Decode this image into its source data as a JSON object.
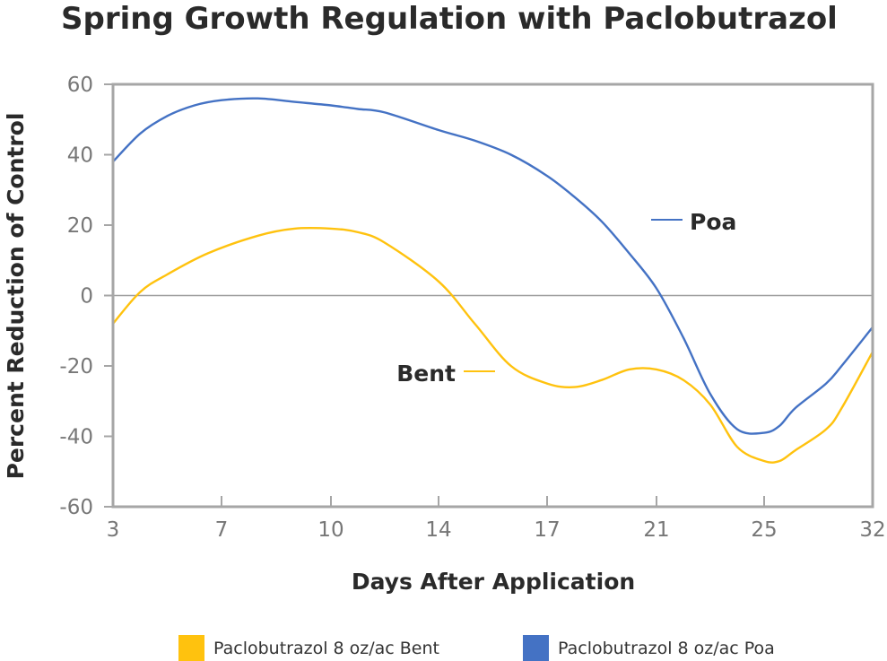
{
  "chart_data": {
    "type": "line",
    "title": "Spring Growth Regulation with Paclobutrazol",
    "xlabel": "Days After Application",
    "ylabel": "Percent Reduction of Control",
    "x_ticks": [
      3,
      7,
      10,
      14,
      17,
      21,
      25,
      32
    ],
    "y_ticks": [
      60,
      40,
      20,
      0,
      -20,
      -40,
      -60
    ],
    "xlim": [
      3,
      32
    ],
    "ylim": [
      -60,
      60
    ],
    "grid": false,
    "zero_line": true,
    "legend_position": "bottom",
    "series": [
      {
        "name": "Paclobutrazol 8 oz/ac Bent",
        "short_label": "Bent",
        "color": "#FFC20E",
        "x": [
          3,
          4,
          5,
          6.5,
          8,
          9,
          10,
          11,
          12,
          14,
          15,
          16,
          17,
          18,
          19,
          20,
          21,
          22,
          23,
          24,
          25,
          26,
          27,
          29,
          30,
          32
        ],
        "y": [
          -8,
          1,
          6,
          12,
          17,
          19,
          19,
          18,
          15,
          4,
          -8,
          -20,
          -25,
          -26,
          -24,
          -21,
          -21,
          -24,
          -31,
          -43,
          -47,
          -47,
          -44,
          -38,
          -32,
          -16
        ]
      },
      {
        "name": "Paclobutrazol 8 oz/ac Poa",
        "short_label": "Poa",
        "color": "#4472C4",
        "x": [
          3,
          4,
          5,
          6,
          7,
          8,
          9,
          10,
          11,
          12,
          14,
          15,
          16,
          17,
          18,
          19,
          20,
          21,
          22,
          23,
          24,
          25,
          26,
          27,
          29,
          30,
          32
        ],
        "y": [
          38,
          46,
          51,
          54,
          55.5,
          56,
          55,
          54,
          53,
          52,
          47,
          44,
          40,
          34,
          28,
          21,
          12,
          2,
          -12,
          -28,
          -38,
          -39,
          -37,
          -32,
          -25,
          -20,
          -9
        ]
      }
    ]
  }
}
